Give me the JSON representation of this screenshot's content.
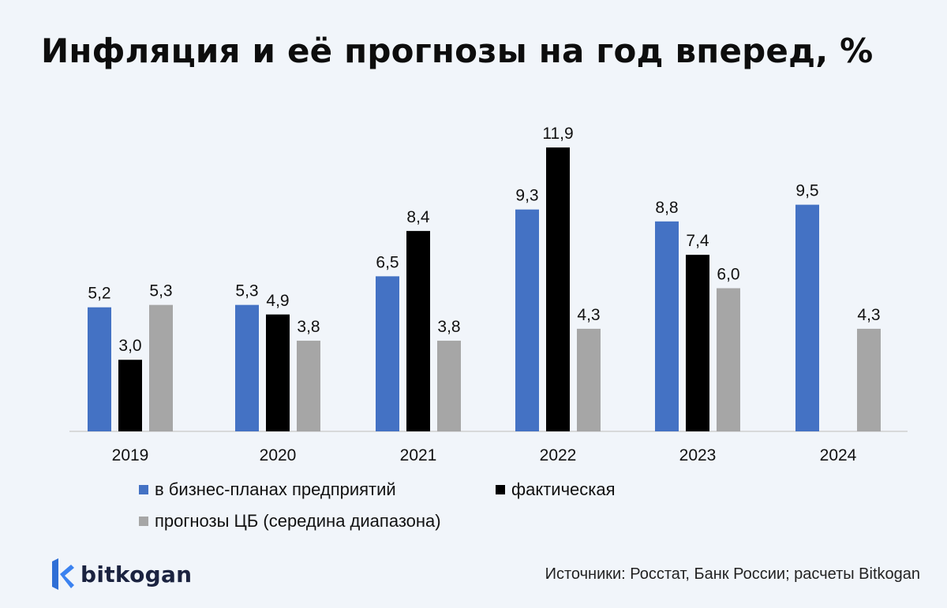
{
  "chart_data": {
    "type": "bar",
    "title": "Инфляция и её прогнозы на год вперед, %",
    "categories": [
      "2019",
      "2020",
      "2021",
      "2022",
      "2023",
      "2024"
    ],
    "series": [
      {
        "name": "в бизнес-планах предприятий",
        "color": "#4472c4",
        "values": [
          5.2,
          5.3,
          6.5,
          9.3,
          8.8,
          9.5
        ],
        "labels": [
          "5,2",
          "5,3",
          "6,5",
          "9,3",
          "8,8",
          "9,5"
        ]
      },
      {
        "name": "фактическая",
        "color": "#000000",
        "values": [
          3.0,
          4.9,
          8.4,
          11.9,
          7.4,
          null
        ],
        "labels": [
          "3,0",
          "4,9",
          "8,4",
          "11,9",
          "7,4",
          ""
        ]
      },
      {
        "name": "прогнозы ЦБ (середина диапазона)",
        "color": "#a6a6a6",
        "values": [
          5.3,
          3.8,
          3.8,
          4.3,
          6.0,
          4.3
        ],
        "labels": [
          "5,3",
          "3,8",
          "3,8",
          "4,3",
          "6,0",
          "4,3"
        ]
      }
    ],
    "ylim": [
      0,
      12
    ],
    "grid": false,
    "legend_position": "bottom"
  },
  "footer": {
    "logo_text": "bitkogan",
    "source": "Источники: Росстат, Банк России; расчеты Bitkogan"
  }
}
